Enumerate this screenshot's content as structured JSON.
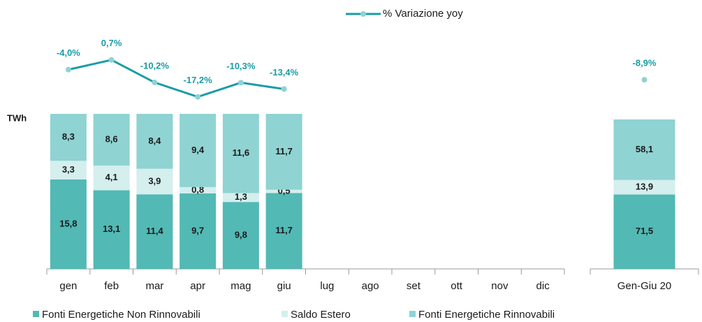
{
  "chart_data": [
    {
      "type": "bar",
      "stack": "percent",
      "y_label": "TWh",
      "categories": [
        "gen",
        "feb",
        "mar",
        "apr",
        "mag",
        "giu",
        "lug",
        "ago",
        "set",
        "ott",
        "nov",
        "dic"
      ],
      "ylim": [
        0,
        100
      ],
      "y2lim": [
        -20,
        3
      ],
      "series": [
        {
          "name": "Fonti Energetiche Non Rinnovabili",
          "color": "#52b9b5",
          "values": [
            15.8,
            13.1,
            11.4,
            9.7,
            9.8,
            11.7,
            null,
            null,
            null,
            null,
            null,
            null
          ],
          "value_labels": [
            "15,8",
            "13,1",
            "11,4",
            "9,7",
            "9,8",
            "11,7",
            null,
            null,
            null,
            null,
            null,
            null
          ]
        },
        {
          "name": "Saldo Estero",
          "color": "#d5eeee",
          "values": [
            3.3,
            4.1,
            3.9,
            0.8,
            1.3,
            0.5,
            null,
            null,
            null,
            null,
            null,
            null
          ],
          "value_labels": [
            "3,3",
            "4,1",
            "3,9",
            "0,8",
            "1,3",
            "0,5",
            null,
            null,
            null,
            null,
            null,
            null
          ]
        },
        {
          "name": "Fonti Energetiche Rinnovabili",
          "color": "#8fd3d2",
          "values": [
            8.3,
            8.6,
            8.4,
            9.4,
            11.6,
            11.7,
            null,
            null,
            null,
            null,
            null,
            null
          ],
          "value_labels": [
            "8,3",
            "8,6",
            "8,4",
            "9,4",
            "11,6",
            "11,7",
            null,
            null,
            null,
            null,
            null,
            null
          ]
        },
        {
          "name": "% Variazione yoy",
          "type": "line",
          "axis": "y2",
          "color": "#1a9ca6",
          "values": [
            -4.0,
            0.7,
            -10.2,
            -17.2,
            -10.3,
            -13.4,
            null,
            null,
            null,
            null,
            null,
            null
          ],
          "value_labels": [
            "-4,0%",
            "0,7%",
            "-10,2%",
            "-17,2%",
            "-10,3%",
            "-13,4%",
            null,
            null,
            null,
            null,
            null,
            null
          ]
        }
      ]
    },
    {
      "type": "bar",
      "stack": "percent",
      "categories": [
        "Gen-Giu 20"
      ],
      "ylim": [
        0,
        100
      ],
      "y2lim": [
        -20,
        3
      ],
      "series": [
        {
          "color": "#52b9b5",
          "values": [
            71.5
          ],
          "value_labels": [
            "71,5"
          ]
        },
        {
          "color": "#d5eeee",
          "values": [
            13.9
          ],
          "value_labels": [
            "13,9"
          ]
        },
        {
          "color": "#8fd3d2",
          "values": [
            58.1
          ],
          "value_labels": [
            "58,1"
          ]
        },
        {
          "type": "line",
          "axis": "y2",
          "color": "#1a9ca6",
          "values": [
            -8.9
          ],
          "value_labels": [
            "-8,9%"
          ]
        }
      ]
    }
  ]
}
